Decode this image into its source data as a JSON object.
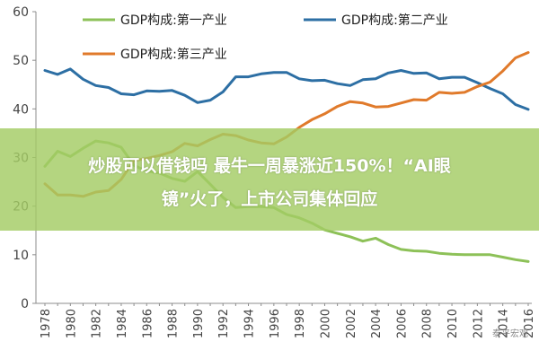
{
  "chart_data": {
    "type": "line",
    "x": [
      1978,
      1979,
      1980,
      1981,
      1982,
      1983,
      1984,
      1985,
      1986,
      1987,
      1988,
      1989,
      1990,
      1991,
      1992,
      1993,
      1994,
      1995,
      1996,
      1997,
      1998,
      1999,
      2000,
      2001,
      2002,
      2003,
      2004,
      2005,
      2006,
      2007,
      2008,
      2009,
      2010,
      2011,
      2012,
      2013,
      2014,
      2015,
      2016
    ],
    "series": [
      {
        "name": "GDP构成:第一产业",
        "color": "#8dc158",
        "values": [
          28.2,
          31.3,
          30.2,
          31.9,
          33.4,
          33.0,
          32.1,
          28.4,
          27.2,
          26.8,
          25.7,
          25.1,
          27.1,
          24.5,
          21.8,
          19.7,
          19.9,
          19.9,
          19.7,
          18.3,
          17.6,
          16.5,
          15.1,
          14.4,
          13.7,
          12.8,
          13.4,
          12.1,
          11.1,
          10.8,
          10.7,
          10.3,
          10.1,
          10.0,
          10.0,
          10.0,
          9.5,
          9.0,
          8.6
        ]
      },
      {
        "name": "GDP构成:第二产业",
        "color": "#2d6fa4",
        "values": [
          47.9,
          47.1,
          48.2,
          46.1,
          44.8,
          44.4,
          43.1,
          42.9,
          43.7,
          43.6,
          43.8,
          42.8,
          41.3,
          41.8,
          43.5,
          46.6,
          46.6,
          47.2,
          47.5,
          47.5,
          46.2,
          45.8,
          45.9,
          45.2,
          44.8,
          46.0,
          46.2,
          47.4,
          47.9,
          47.3,
          47.4,
          46.2,
          46.5,
          46.5,
          45.4,
          44.2,
          43.1,
          40.9,
          39.9
        ]
      },
      {
        "name": "GDP构成:第三产业",
        "color": "#e07a2b",
        "values": [
          24.6,
          22.3,
          22.3,
          22.0,
          22.9,
          23.2,
          25.5,
          29.4,
          29.8,
          30.4,
          31.2,
          32.9,
          32.4,
          33.7,
          34.8,
          34.5,
          33.6,
          33.0,
          32.8,
          34.2,
          36.2,
          37.8,
          39.0,
          40.5,
          41.5,
          41.2,
          40.4,
          40.5,
          41.2,
          41.9,
          41.8,
          43.4,
          43.2,
          43.4,
          44.6,
          45.5,
          47.8,
          50.5,
          51.6
        ]
      }
    ],
    "ylim": [
      0,
      60
    ],
    "yticks": [
      0,
      10,
      20,
      30,
      40,
      50,
      60
    ],
    "grid": false,
    "legend": "top"
  },
  "overlay": {
    "headline_line1": "炒股可以借钱吗 最牛一周暴涨近150%！“AI眼",
    "headline_line2": "镜”火了，上市公司集体回应"
  },
  "watermark": "泰平宏观"
}
